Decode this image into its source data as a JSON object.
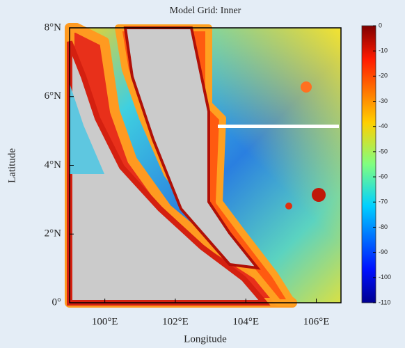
{
  "chart_data": {
    "type": "heatmap",
    "title": "Model Grid: Inner",
    "xlabel": "Longitude",
    "ylabel": "Latitude",
    "xlim": [
      99,
      106.7
    ],
    "xticks": [
      {
        "value": 100,
        "label": "100°E"
      },
      {
        "value": 102,
        "label": "102°E"
      },
      {
        "value": 104,
        "label": "104°E"
      },
      {
        "value": 106,
        "label": "106°E"
      }
    ],
    "ylim": [
      0,
      8
    ],
    "yticks": [
      {
        "value": 0,
        "label": "0°"
      },
      {
        "value": 2,
        "label": "2°N"
      },
      {
        "value": 4,
        "label": "4°N"
      },
      {
        "value": 6,
        "label": "6°N"
      },
      {
        "value": 8,
        "label": "8°N"
      }
    ],
    "colorbar": {
      "lim": [
        -110,
        0
      ],
      "ticks": [
        0,
        -10,
        -20,
        -30,
        -40,
        -50,
        -60,
        -70,
        -80,
        -90,
        -100,
        -110
      ]
    }
  }
}
